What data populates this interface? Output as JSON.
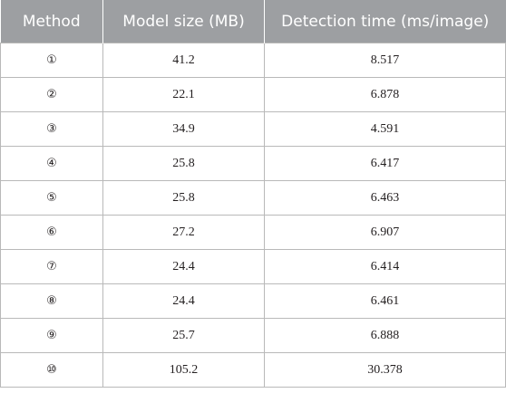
{
  "table": {
    "headers": [
      "Method",
      "Model size (MB)",
      "Detection time (ms/image)"
    ],
    "rows": [
      [
        "①",
        "41.2",
        "8.517"
      ],
      [
        "②",
        "22.1",
        "6.878"
      ],
      [
        "③",
        "34.9",
        "4.591"
      ],
      [
        "④",
        "25.8",
        "6.417"
      ],
      [
        "⑤",
        "25.8",
        "6.463"
      ],
      [
        "⑥",
        "27.2",
        "6.907"
      ],
      [
        "⑦",
        "24.4",
        "6.414"
      ],
      [
        "⑧",
        "24.4",
        "6.461"
      ],
      [
        "⑨",
        "25.7",
        "6.888"
      ],
      [
        "⑩",
        "105.2",
        "30.378"
      ]
    ]
  },
  "colors": {
    "header_background": "#9d9fa2",
    "header_text": "#ffffff",
    "border": "#b9b9b9",
    "body_text": "#231f20"
  }
}
